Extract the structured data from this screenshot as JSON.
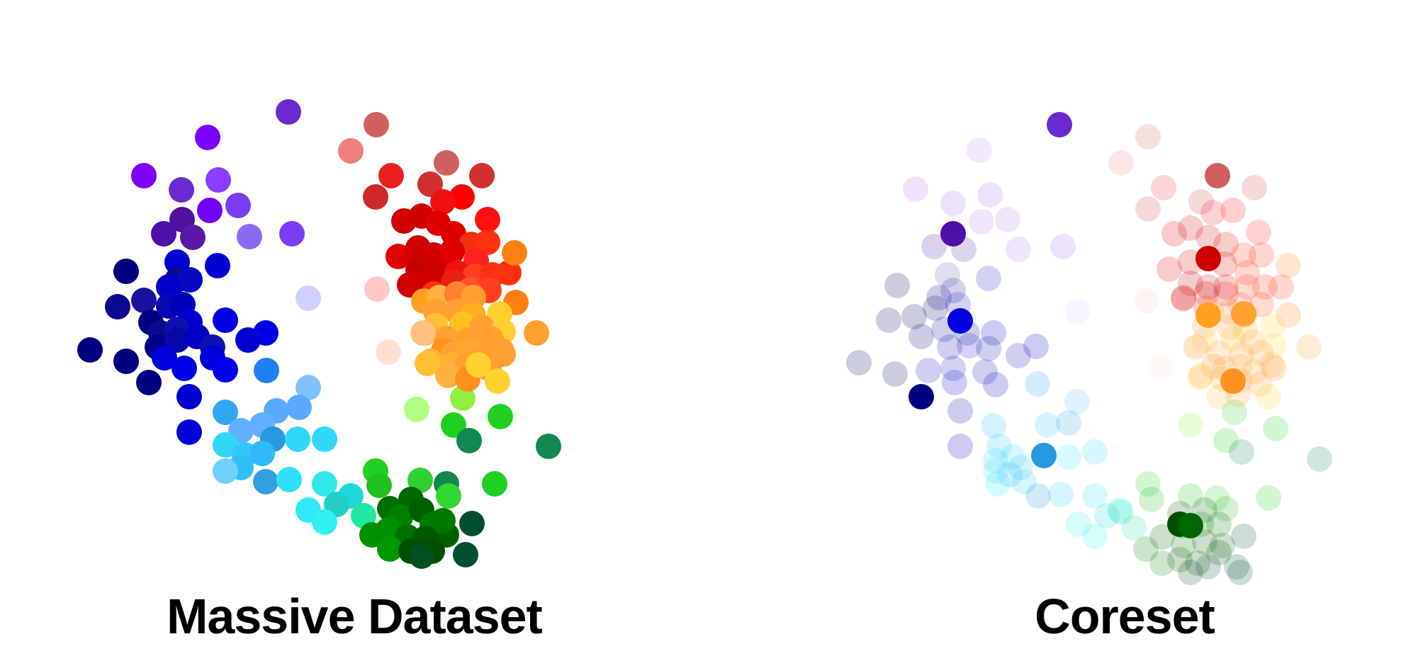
{
  "panels": {
    "dataset": {
      "title": "Massive Dataset"
    },
    "coreset": {
      "title": "Coreset"
    }
  },
  "colors": {
    "background": "#ffffff",
    "label": "#000000",
    "faded_opacity": 0.2
  }
}
